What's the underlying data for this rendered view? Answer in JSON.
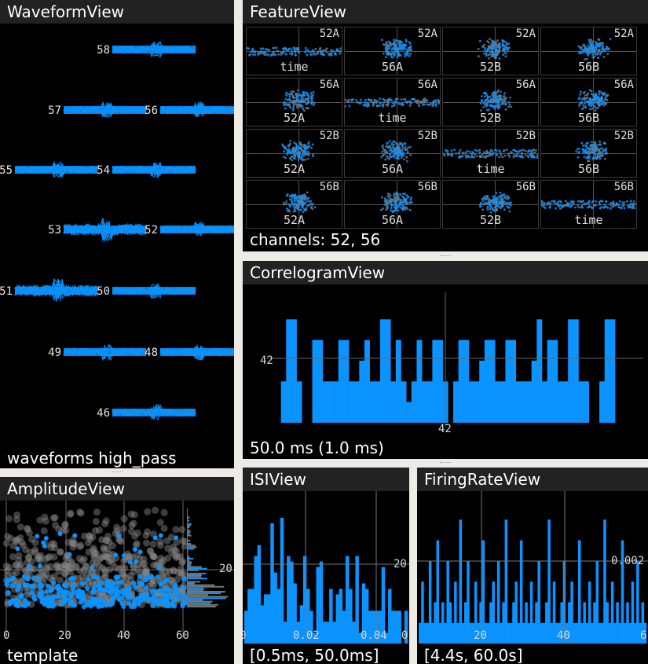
{
  "colors": {
    "accent": "#0b93ff",
    "grey": "#777777",
    "title_bar": "#222222"
  },
  "waveform": {
    "title": "WaveformView",
    "status": "waveforms high_pass",
    "channels": [
      "58",
      "57",
      "56",
      "55",
      "54",
      "53",
      "52",
      "51",
      "50",
      "49",
      "48",
      "46"
    ]
  },
  "feature": {
    "title": "FeatureView",
    "status": "channels: 52, 56",
    "grid": [
      [
        {
          "top": "52A",
          "bot": "time"
        },
        {
          "top": "52A",
          "bot": "56A"
        },
        {
          "top": "52A",
          "bot": "52B"
        },
        {
          "top": "52A",
          "bot": "56B"
        }
      ],
      [
        {
          "top": "56A",
          "bot": "52A"
        },
        {
          "top": "56A",
          "bot": "time"
        },
        {
          "top": "56A",
          "bot": "52B"
        },
        {
          "top": "56A",
          "bot": "56B"
        }
      ],
      [
        {
          "top": "52B",
          "bot": "52A"
        },
        {
          "top": "52B",
          "bot": "56A"
        },
        {
          "top": "52B",
          "bot": "time"
        },
        {
          "top": "52B",
          "bot": "56B"
        }
      ],
      [
        {
          "top": "56B",
          "bot": "52A"
        },
        {
          "top": "56B",
          "bot": "56A"
        },
        {
          "top": "56B",
          "bot": "52B"
        },
        {
          "top": "56B",
          "bot": "time"
        }
      ]
    ]
  },
  "correlogram": {
    "title": "CorrelogramView",
    "status": "50.0 ms (1.0 ms)",
    "ylabel_tick": "42",
    "xlabel_tick": "42"
  },
  "amplitude": {
    "title": "AmplitudeView",
    "status": "template",
    "ticks_x": [
      "0",
      "20",
      "40",
      "60"
    ],
    "tick_y": "20"
  },
  "isi": {
    "title": "ISIView",
    "status": "[0.5ms, 50.0ms]",
    "ticks_x": [
      "0",
      "0.02",
      "0.04",
      "0"
    ],
    "tick_y": "20"
  },
  "firing": {
    "title": "FiringRateView",
    "status": "[4.4s, 60.0s]",
    "ticks_x": [
      "20",
      "40",
      "6"
    ],
    "tick_y": "0.002"
  },
  "chart_data": [
    {
      "type": "bar",
      "title": "CorrelogramView",
      "values": [
        0,
        2,
        5,
        5,
        2,
        0,
        0,
        4,
        4,
        2,
        2,
        2,
        4,
        4,
        2,
        2,
        3,
        4,
        2,
        2,
        5,
        5,
        2,
        4,
        2,
        1,
        2,
        4,
        2,
        2,
        4,
        4,
        2,
        0,
        2,
        4,
        4,
        2,
        2,
        3,
        4,
        4,
        2,
        2,
        4,
        4,
        2,
        2,
        2,
        3,
        5,
        2,
        4,
        4,
        2,
        2,
        5,
        5,
        2,
        2,
        0,
        0,
        2,
        5,
        5
      ],
      "ylim": [
        0,
        6
      ]
    },
    {
      "type": "bar",
      "title": "ISIView",
      "values": [
        0.6,
        1.0,
        1.0,
        1.6,
        1.8,
        0.7,
        0.9,
        0.9,
        2.2,
        1.3,
        1.0,
        2.3,
        0.4,
        1.6,
        1.5,
        1.1,
        0.4,
        0.7,
        1.6,
        1.0,
        0.6,
        0.2,
        1.4,
        1.5,
        0.4,
        0.4,
        1.0,
        0.4,
        0.9,
        1.0,
        0.6,
        1.6,
        1.0,
        0.4,
        1.6,
        0.2,
        1.1,
        1.0,
        0.6,
        0.6,
        0.6,
        0.6,
        1.4,
        0.2,
        1.0,
        0.6,
        0.6,
        0.6,
        0.0,
        0.6
      ],
      "ylim": [
        0,
        2.5
      ]
    },
    {
      "type": "bar",
      "title": "FiringRateView",
      "values": [
        1,
        3,
        1,
        1,
        4,
        1,
        2,
        5,
        1,
        2,
        1,
        4,
        2,
        1,
        3,
        1,
        6,
        1,
        2,
        4,
        1,
        1,
        3,
        1,
        2,
        5,
        1,
        1,
        2,
        3,
        1,
        4,
        1,
        2,
        6,
        1,
        1,
        2,
        3,
        1,
        5,
        1,
        2,
        1,
        3,
        1,
        2,
        4,
        1,
        1,
        2,
        6,
        1,
        3,
        1,
        1,
        2,
        4,
        1,
        2,
        3,
        1,
        1,
        5,
        1,
        2,
        1,
        3,
        1,
        2,
        4,
        1,
        1,
        6,
        2,
        1,
        3,
        1,
        2,
        1,
        5,
        1,
        2,
        1,
        3,
        1,
        4,
        1,
        2,
        1
      ],
      "ylim": [
        0,
        7
      ]
    }
  ]
}
